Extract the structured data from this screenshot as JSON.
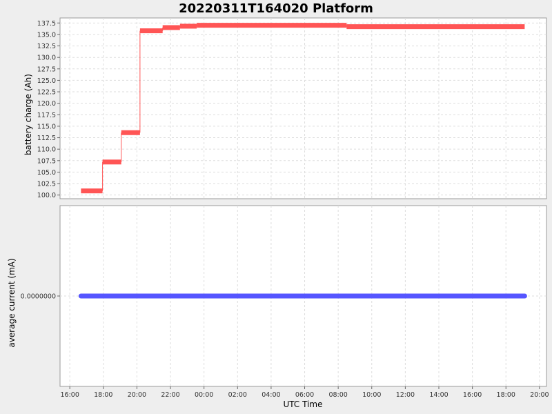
{
  "title": "20220311T164020 Platform",
  "chart_data": [
    {
      "type": "line",
      "title": "20220311T164020 Platform",
      "ylabel": "battery charge (Ah)",
      "xlabel": "UTC Time",
      "xlim": [
        "2022-03-11T15:25",
        "2022-03-12T20:25"
      ],
      "ylim": [
        99.2,
        138.6
      ],
      "yticks": [
        "100.0",
        "102.5",
        "105.0",
        "107.5",
        "110.0",
        "112.5",
        "115.0",
        "117.5",
        "120.0",
        "122.5",
        "125.0",
        "127.5",
        "130.0",
        "132.5",
        "135.0",
        "137.5"
      ],
      "grid": true,
      "series": [
        {
          "color": "#ff5555",
          "style": "thick horizontal segments joined by thin connectors",
          "segments": [
            {
              "x_start": "2022-03-11T16:40",
              "x_end": "2022-03-11T17:57",
              "y": 100.9
            },
            {
              "x_start": "2022-03-11T17:57",
              "x_end": "2022-03-11T19:04",
              "y": 107.2
            },
            {
              "x_start": "2022-03-11T19:04",
              "x_end": "2022-03-11T20:11",
              "y": 113.6
            },
            {
              "x_start": "2022-03-11T20:11",
              "x_end": "2022-03-11T21:32",
              "y": 135.8
            },
            {
              "x_start": "2022-03-11T21:32",
              "x_end": "2022-03-11T22:34",
              "y": 136.5
            },
            {
              "x_start": "2022-03-11T22:34",
              "x_end": "2022-03-11T23:34",
              "y": 136.8
            },
            {
              "x_start": "2022-03-11T23:34",
              "x_end": "2022-03-12T08:30",
              "y": 137.0
            },
            {
              "x_start": "2022-03-12T08:30",
              "x_end": "2022-03-12T19:07",
              "y": 136.7
            }
          ]
        }
      ]
    },
    {
      "type": "line",
      "ylabel": "average current (mA)",
      "xlabel": "UTC Time",
      "xlim": [
        "2022-03-11T15:25",
        "2022-03-12T20:25"
      ],
      "yticks": [
        "0.0000000"
      ],
      "grid": true,
      "series": [
        {
          "color": "#5555ff",
          "x_start": "2022-03-11T16:40",
          "x_end": "2022-03-12T19:07",
          "y": 0.0
        }
      ]
    }
  ],
  "x_ticks": [
    "16:00",
    "18:00",
    "20:00",
    "22:00",
    "00:00",
    "02:00",
    "04:00",
    "06:00",
    "08:00",
    "10:00",
    "12:00",
    "14:00",
    "16:00",
    "18:00",
    "20:00"
  ]
}
